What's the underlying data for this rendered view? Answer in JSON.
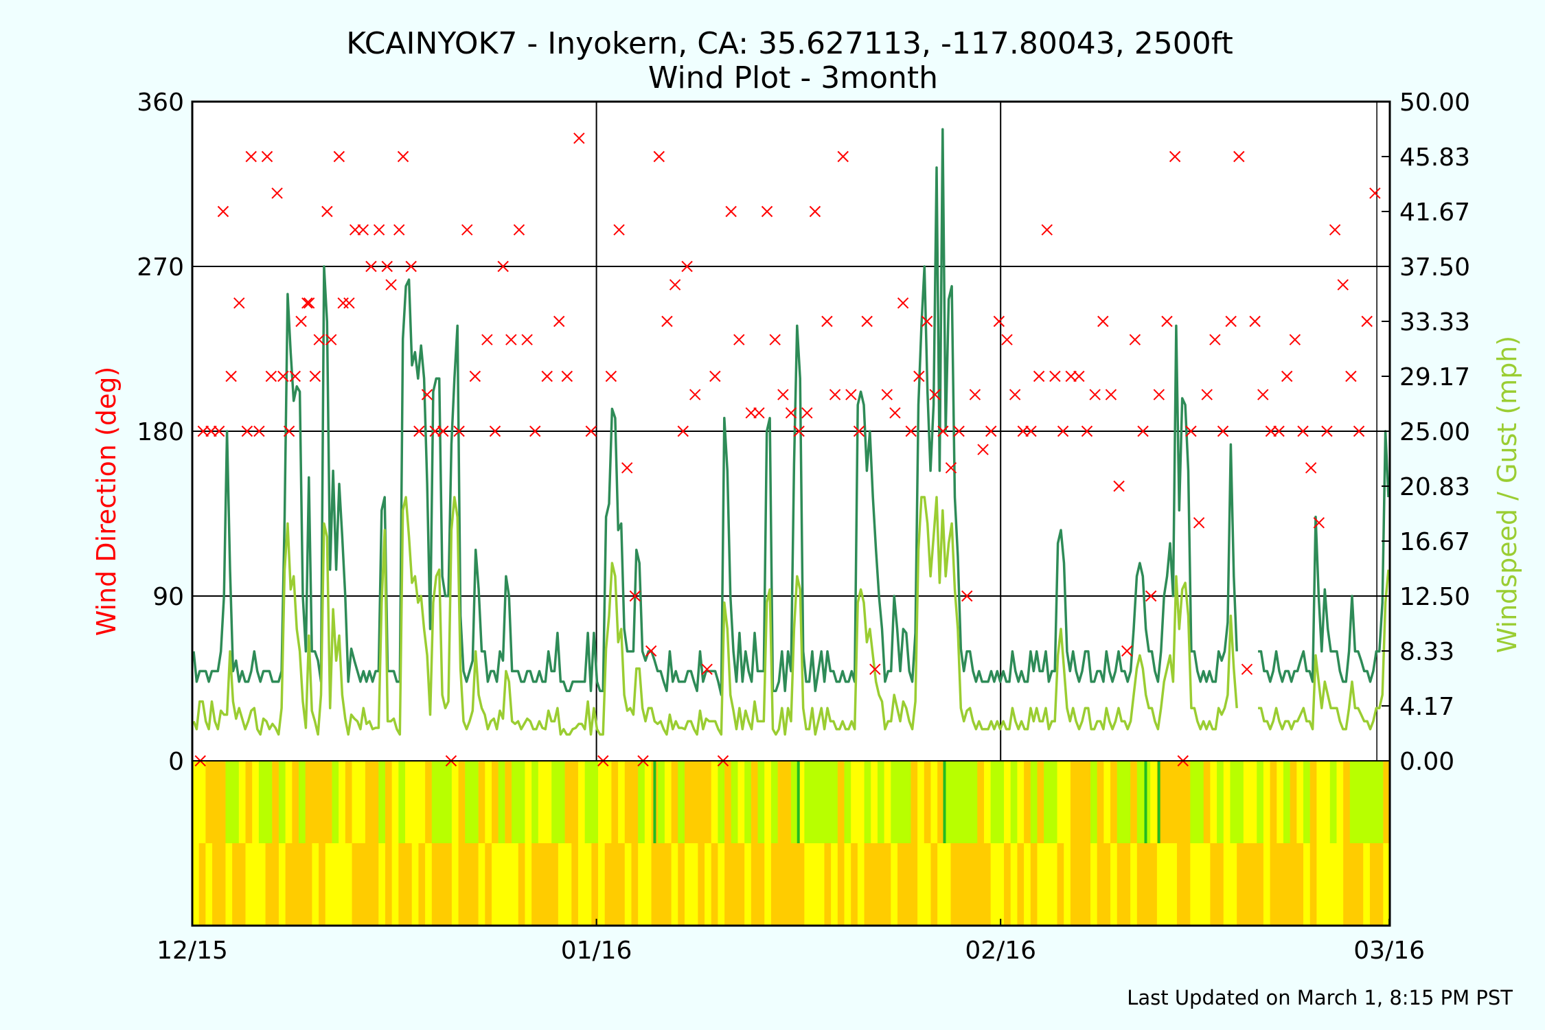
{
  "chart_data": {
    "type": "line",
    "title": "KCAINYOK7 - Inyokern, CA: 35.627113, -117.80043, 2500ft",
    "subtitle": "Wind Plot - 3month",
    "ylabel_left": "Wind Direction (deg)",
    "ylabel_right": "Windspeed / Gust (mph)",
    "left_ticks": [
      "0",
      "90",
      "180",
      "270",
      "360"
    ],
    "right_ticks": [
      "0.00",
      "4.17",
      "8.33",
      "12.50",
      "16.67",
      "20.83",
      "25.00",
      "29.17",
      "33.33",
      "37.50",
      "41.67",
      "45.83",
      "50.00"
    ],
    "x_ticks": [
      "12/15",
      "01/16",
      "02/16",
      "03/16"
    ],
    "ylim_left": [
      0,
      360
    ],
    "ylim_right": [
      0,
      50
    ],
    "grid": true,
    "colors": {
      "direction": "#ff0000",
      "gust": "#2e8b57",
      "speed": "#9acd32",
      "band_a": "#ffcc00",
      "band_b": "#ffff00",
      "band_c": "#b8ff00",
      "band_d": "#22bb22"
    },
    "series": [
      {
        "name": "Gust",
        "values": [
          8.3,
          6.0,
          6.8,
          6.8,
          6.8,
          6.0,
          6.8,
          6.8,
          6.8,
          8.3,
          12.5,
          25.0,
          14.5,
          6.8,
          7.6,
          6.0,
          6.8,
          6.0,
          6.0,
          6.8,
          8.3,
          6.8,
          6.0,
          6.8,
          6.8,
          6.8,
          6.0,
          6.0,
          6.0,
          6.8,
          18.5,
          35.4,
          31.0,
          27.3,
          28.4,
          28.0,
          12.5,
          8.3,
          21.5,
          8.3,
          8.3,
          7.6,
          6.0,
          37.5,
          33.3,
          14.5,
          22.0,
          14.5,
          21.0,
          17.0,
          12.5,
          6.0,
          8.5,
          7.6,
          6.8,
          6.0,
          6.8,
          6.0,
          6.8,
          6.0,
          6.8,
          6.8,
          19.0,
          20.0,
          6.8,
          6.8,
          6.8,
          6.0,
          6.0,
          32.0,
          36.0,
          36.5,
          30.0,
          31.0,
          29.0,
          31.5,
          29.0,
          21.0,
          10.0,
          28.0,
          29.0,
          29.0,
          14.0,
          12.5,
          12.5,
          24.0,
          29.0,
          33.0,
          11.0,
          6.8,
          6.0,
          6.8,
          7.6,
          16.0,
          13.0,
          8.3,
          8.3,
          6.0,
          6.8,
          6.8,
          6.0,
          8.3,
          7.6,
          14.0,
          12.5,
          6.8,
          6.8,
          6.8,
          6.0,
          6.0,
          6.8,
          6.8,
          6.0,
          6.0,
          6.8,
          6.0,
          6.0,
          8.3,
          6.8,
          6.8,
          9.7,
          6.0,
          6.0,
          5.3,
          5.3,
          6.0,
          6.0,
          6.0,
          6.0,
          6.0,
          9.7,
          5.3,
          9.7,
          6.0,
          5.3,
          5.3,
          18.5,
          19.5,
          26.7,
          26.0,
          17.5,
          18.0,
          10.0,
          8.3,
          8.3,
          8.3,
          16.0,
          15.0,
          8.3,
          7.6,
          8.3,
          8.3,
          7.6,
          6.8,
          6.8,
          6.0,
          5.3,
          8.3,
          6.0,
          6.8,
          6.0,
          6.0,
          6.0,
          6.8,
          6.8,
          6.0,
          5.3,
          8.3,
          6.0,
          6.8,
          6.8,
          6.8,
          6.8,
          6.0,
          5.0,
          26.0,
          22.0,
          12.5,
          8.3,
          6.0,
          9.7,
          6.0,
          8.3,
          6.8,
          6.0,
          9.7,
          6.8,
          6.8,
          6.8,
          25.0,
          26.0,
          5.3,
          5.3,
          6.0,
          8.3,
          5.3,
          8.3,
          6.8,
          22.5,
          33.0,
          29.0,
          8.3,
          6.0,
          6.0,
          8.3,
          5.3,
          6.8,
          8.3,
          6.0,
          8.3,
          6.8,
          6.8,
          6.0,
          6.0,
          6.8,
          6.0,
          6.0,
          6.8,
          6.0,
          27.0,
          28.0,
          27.0,
          22.0,
          25.0,
          20.0,
          16.0,
          12.5,
          10.0,
          6.0,
          6.8,
          6.8,
          12.5,
          10.0,
          6.8,
          10.0,
          9.7,
          6.8,
          6.0,
          9.7,
          27.0,
          33.0,
          37.5,
          28.0,
          22.0,
          27.0,
          45.0,
          22.0,
          47.9,
          25.0,
          35.0,
          36.0,
          20.0,
          15.5,
          8.5,
          6.8,
          8.3,
          8.3,
          6.8,
          6.0,
          6.8,
          6.0,
          6.0,
          6.0,
          6.8,
          6.0,
          6.8,
          6.0,
          6.8,
          6.0,
          6.0,
          8.3,
          6.8,
          6.0,
          6.8,
          6.0,
          6.0,
          8.3,
          6.8,
          8.3,
          6.8,
          6.8,
          8.3,
          6.0,
          6.8,
          6.8,
          16.5,
          17.5,
          15.0,
          8.3,
          6.8,
          8.3,
          6.8,
          6.0,
          6.8,
          8.3,
          8.3,
          6.0,
          6.0,
          6.8,
          6.8,
          6.0,
          8.3,
          6.8,
          6.0,
          6.8,
          8.3,
          6.8,
          6.8,
          6.0,
          6.8,
          10.0,
          14.0,
          15.0,
          14.0,
          10.0,
          8.3,
          8.3,
          6.8,
          6.0,
          8.3,
          12.5,
          14.0,
          16.5,
          12.5,
          33.0,
          19.0,
          27.5,
          27.0,
          22.0,
          8.3,
          8.3,
          6.8,
          6.0,
          6.8,
          6.0,
          6.8,
          6.0,
          6.0,
          8.3,
          7.6,
          8.3,
          10.5,
          24.0,
          14.0,
          8.3,
          12.5,
          13.0,
          8.3,
          13.0,
          8.3,
          8.3,
          8.3,
          8.3,
          6.8,
          6.8,
          6.0,
          6.8,
          8.3,
          6.8,
          6.0,
          6.8,
          6.8,
          6.0,
          6.8,
          6.8,
          7.6,
          8.3,
          6.8,
          6.8,
          6.0,
          18.5,
          12.5,
          8.3,
          13.0,
          10.0,
          8.3,
          8.3,
          8.3,
          6.8,
          6.0,
          6.0,
          8.3,
          12.5,
          8.3,
          8.3,
          7.6,
          6.8,
          6.8,
          6.0,
          6.8,
          8.3,
          8.3,
          12.0,
          25.0,
          20.0
        ],
        "break_after_index": 344,
        "break_resume_index": 351
      },
      {
        "name": "Speed",
        "values": [
          3.0,
          2.4,
          4.5,
          4.5,
          3.0,
          2.4,
          4.5,
          3.0,
          2.4,
          3.8,
          3.5,
          3.5,
          8.3,
          4.5,
          3.2,
          4.0,
          3.2,
          2.4,
          3.0,
          3.8,
          4.0,
          2.4,
          2.0,
          3.2,
          3.0,
          2.4,
          2.8,
          2.5,
          2.0,
          4.0,
          14.5,
          18.0,
          13.0,
          14.0,
          10.0,
          8.3,
          4.5,
          2.5,
          9.5,
          3.8,
          3.0,
          2.0,
          5.0,
          18.0,
          17.0,
          4.0,
          11.5,
          7.6,
          9.5,
          5.0,
          3.2,
          2.0,
          3.5,
          3.2,
          3.0,
          2.4,
          4.0,
          2.8,
          3.0,
          2.4,
          2.5,
          2.5,
          12.0,
          17.5,
          3.0,
          3.0,
          3.2,
          2.4,
          2.0,
          19.0,
          20.0,
          17.0,
          13.5,
          14.0,
          12.0,
          12.5,
          10.0,
          8.0,
          3.5,
          12.0,
          14.0,
          14.5,
          5.0,
          4.0,
          4.5,
          17.5,
          20.0,
          18.5,
          7.0,
          3.0,
          2.4,
          3.0,
          3.8,
          8.3,
          5.0,
          4.0,
          3.5,
          2.4,
          3.0,
          3.2,
          2.4,
          3.8,
          3.2,
          6.8,
          6.0,
          3.0,
          2.8,
          3.0,
          2.4,
          2.8,
          3.2,
          3.0,
          2.4,
          2.4,
          3.0,
          2.5,
          2.4,
          3.8,
          3.0,
          3.0,
          4.0,
          2.0,
          2.4,
          2.0,
          2.0,
          2.4,
          2.5,
          2.8,
          2.8,
          2.4,
          4.5,
          2.0,
          4.0,
          2.4,
          2.0,
          2.0,
          8.5,
          11.0,
          15.0,
          14.0,
          9.0,
          10.0,
          5.0,
          3.8,
          4.0,
          3.5,
          7.0,
          7.0,
          4.0,
          3.0,
          4.0,
          4.0,
          3.0,
          2.8,
          3.0,
          2.4,
          2.0,
          3.5,
          2.4,
          3.0,
          2.5,
          2.5,
          2.4,
          3.0,
          3.0,
          2.4,
          2.0,
          3.8,
          2.4,
          3.2,
          3.0,
          3.0,
          3.0,
          2.4,
          2.0,
          12.0,
          10.0,
          5.0,
          3.8,
          2.4,
          4.0,
          2.4,
          3.8,
          3.0,
          2.4,
          4.5,
          3.0,
          3.0,
          3.0,
          12.0,
          13.0,
          2.4,
          2.0,
          2.4,
          4.0,
          2.0,
          4.0,
          3.0,
          10.0,
          14.0,
          13.0,
          4.0,
          2.4,
          2.4,
          4.0,
          2.0,
          3.0,
          4.0,
          2.4,
          4.0,
          3.0,
          3.0,
          2.4,
          2.4,
          3.0,
          2.4,
          2.4,
          3.0,
          2.4,
          12.0,
          13.0,
          12.0,
          9.0,
          10.0,
          8.0,
          6.0,
          5.0,
          4.5,
          2.4,
          3.0,
          3.0,
          5.0,
          4.0,
          3.0,
          4.5,
          4.0,
          3.0,
          2.4,
          4.5,
          16.0,
          20.0,
          20.0,
          18.0,
          14.0,
          17.0,
          20.0,
          13.5,
          19.0,
          14.0,
          16.5,
          18.0,
          13.0,
          10.0,
          4.0,
          3.0,
          3.8,
          4.0,
          3.0,
          2.4,
          3.0,
          2.4,
          2.4,
          2.4,
          3.0,
          2.4,
          3.0,
          2.4,
          3.0,
          2.4,
          2.4,
          4.0,
          3.0,
          2.4,
          3.0,
          2.4,
          2.4,
          4.0,
          3.0,
          4.0,
          3.0,
          3.0,
          4.0,
          2.4,
          3.0,
          3.0,
          8.0,
          10.0,
          7.0,
          4.0,
          3.0,
          4.0,
          3.0,
          2.4,
          3.0,
          4.0,
          4.0,
          2.4,
          2.4,
          3.0,
          3.0,
          2.4,
          4.0,
          3.0,
          2.4,
          3.0,
          4.0,
          3.0,
          3.0,
          2.4,
          3.0,
          5.0,
          7.0,
          8.0,
          7.0,
          5.0,
          4.0,
          4.0,
          3.0,
          2.4,
          4.0,
          6.0,
          7.0,
          8.0,
          6.0,
          14.0,
          10.0,
          13.0,
          13.5,
          11.0,
          4.0,
          4.0,
          3.0,
          2.4,
          3.0,
          2.4,
          3.0,
          2.4,
          2.4,
          4.0,
          3.5,
          4.0,
          5.0,
          11.0,
          7.0,
          4.0,
          6.0,
          6.0,
          4.0,
          6.0,
          4.0,
          4.0,
          4.0,
          4.0,
          3.0,
          3.0,
          2.4,
          3.0,
          4.0,
          3.0,
          2.4,
          3.0,
          3.0,
          2.4,
          3.0,
          3.0,
          3.5,
          4.0,
          3.0,
          3.0,
          2.4,
          8.0,
          6.0,
          4.0,
          6.0,
          5.0,
          4.0,
          4.0,
          4.0,
          3.0,
          2.4,
          2.4,
          4.0,
          6.0,
          4.0,
          4.0,
          3.5,
          3.0,
          3.0,
          2.4,
          3.0,
          4.0,
          4.0,
          5.0,
          12.0,
          14.5
        ],
        "break_after_index": 344,
        "break_resume_index": 351
      }
    ],
    "direction_points": [
      [
        3,
        0
      ],
      [
        10,
        180
      ],
      [
        30,
        180
      ],
      [
        50,
        180
      ],
      [
        60,
        300
      ],
      [
        80,
        210
      ],
      [
        100,
        250
      ],
      [
        120,
        180
      ],
      [
        130,
        330
      ],
      [
        150,
        180
      ],
      [
        170,
        330
      ],
      [
        180,
        210
      ],
      [
        195,
        310
      ],
      [
        210,
        210
      ],
      [
        225,
        180
      ],
      [
        240,
        210
      ],
      [
        255,
        240
      ],
      [
        270,
        250
      ],
      [
        275,
        250
      ],
      [
        290,
        210
      ],
      [
        300,
        230
      ],
      [
        320,
        300
      ],
      [
        330,
        230
      ],
      [
        350,
        330
      ],
      [
        360,
        250
      ],
      [
        375,
        250
      ],
      [
        390,
        290
      ],
      [
        410,
        290
      ],
      [
        430,
        270
      ],
      [
        450,
        290
      ],
      [
        470,
        270
      ],
      [
        480,
        260
      ],
      [
        500,
        290
      ],
      [
        510,
        330
      ],
      [
        530,
        270
      ],
      [
        550,
        180
      ],
      [
        570,
        200
      ],
      [
        590,
        180
      ],
      [
        610,
        180
      ],
      [
        630,
        0
      ],
      [
        650,
        180
      ],
      [
        670,
        290
      ],
      [
        690,
        210
      ],
      [
        720,
        230
      ],
      [
        740,
        180
      ],
      [
        760,
        270
      ],
      [
        780,
        230
      ],
      [
        800,
        290
      ],
      [
        820,
        230
      ],
      [
        840,
        180
      ],
      [
        870,
        210
      ],
      [
        900,
        240
      ],
      [
        920,
        210
      ],
      [
        950,
        340
      ],
      [
        980,
        180
      ],
      [
        1010,
        0
      ],
      [
        1030,
        210
      ],
      [
        1050,
        290
      ],
      [
        1070,
        160
      ],
      [
        1090,
        90
      ],
      [
        1110,
        0
      ],
      [
        1130,
        60
      ],
      [
        1150,
        330
      ],
      [
        1170,
        240
      ],
      [
        1190,
        260
      ],
      [
        1210,
        180
      ],
      [
        1220,
        270
      ],
      [
        1240,
        200
      ],
      [
        1270,
        50
      ],
      [
        1290,
        210
      ],
      [
        1310,
        0
      ],
      [
        1330,
        300
      ],
      [
        1350,
        230
      ],
      [
        1380,
        190
      ],
      [
        1400,
        190
      ],
      [
        1420,
        300
      ],
      [
        1440,
        230
      ],
      [
        1460,
        200
      ],
      [
        1480,
        190
      ],
      [
        1500,
        180
      ],
      [
        1520,
        190
      ],
      [
        1540,
        300
      ],
      [
        1570,
        240
      ],
      [
        1590,
        200
      ],
      [
        1610,
        330
      ],
      [
        1630,
        200
      ],
      [
        1650,
        180
      ],
      [
        1670,
        240
      ],
      [
        1690,
        50
      ],
      [
        1720,
        200
      ],
      [
        1740,
        190
      ],
      [
        1760,
        250
      ],
      [
        1780,
        180
      ],
      [
        1800,
        210
      ],
      [
        1820,
        240
      ],
      [
        1840,
        200
      ],
      [
        1860,
        180
      ],
      [
        1880,
        160
      ],
      [
        1900,
        180
      ],
      [
        1920,
        90
      ],
      [
        1940,
        200
      ],
      [
        1960,
        170
      ],
      [
        1980,
        180
      ],
      [
        2000,
        240
      ],
      [
        2020,
        230
      ],
      [
        2040,
        200
      ],
      [
        2060,
        180
      ],
      [
        2080,
        180
      ],
      [
        2100,
        210
      ],
      [
        2120,
        290
      ],
      [
        2140,
        210
      ],
      [
        2160,
        180
      ],
      [
        2180,
        210
      ],
      [
        2200,
        210
      ],
      [
        2220,
        180
      ],
      [
        2240,
        200
      ],
      [
        2260,
        240
      ],
      [
        2280,
        200
      ],
      [
        2300,
        150
      ],
      [
        2320,
        60
      ],
      [
        2340,
        230
      ],
      [
        2360,
        180
      ],
      [
        2380,
        90
      ],
      [
        2400,
        200
      ],
      [
        2420,
        240
      ],
      [
        2440,
        330
      ],
      [
        2460,
        0
      ],
      [
        2480,
        180
      ],
      [
        2500,
        130
      ],
      [
        2520,
        200
      ],
      [
        2540,
        230
      ],
      [
        2560,
        180
      ],
      [
        2580,
        240
      ],
      [
        2600,
        330
      ],
      [
        2620,
        50
      ],
      [
        2640,
        240
      ],
      [
        2660,
        200
      ],
      [
        2680,
        180
      ],
      [
        2700,
        180
      ],
      [
        2720,
        210
      ],
      [
        2740,
        230
      ],
      [
        2760,
        180
      ],
      [
        2780,
        160
      ],
      [
        2800,
        130
      ],
      [
        2820,
        180
      ],
      [
        2840,
        290
      ],
      [
        2860,
        260
      ],
      [
        2880,
        210
      ],
      [
        2900,
        180
      ],
      [
        2920,
        240
      ],
      [
        2940,
        310
      ]
    ]
  },
  "footer": {
    "updated": "Last Updated on March 1, 8:15 PM PST"
  }
}
